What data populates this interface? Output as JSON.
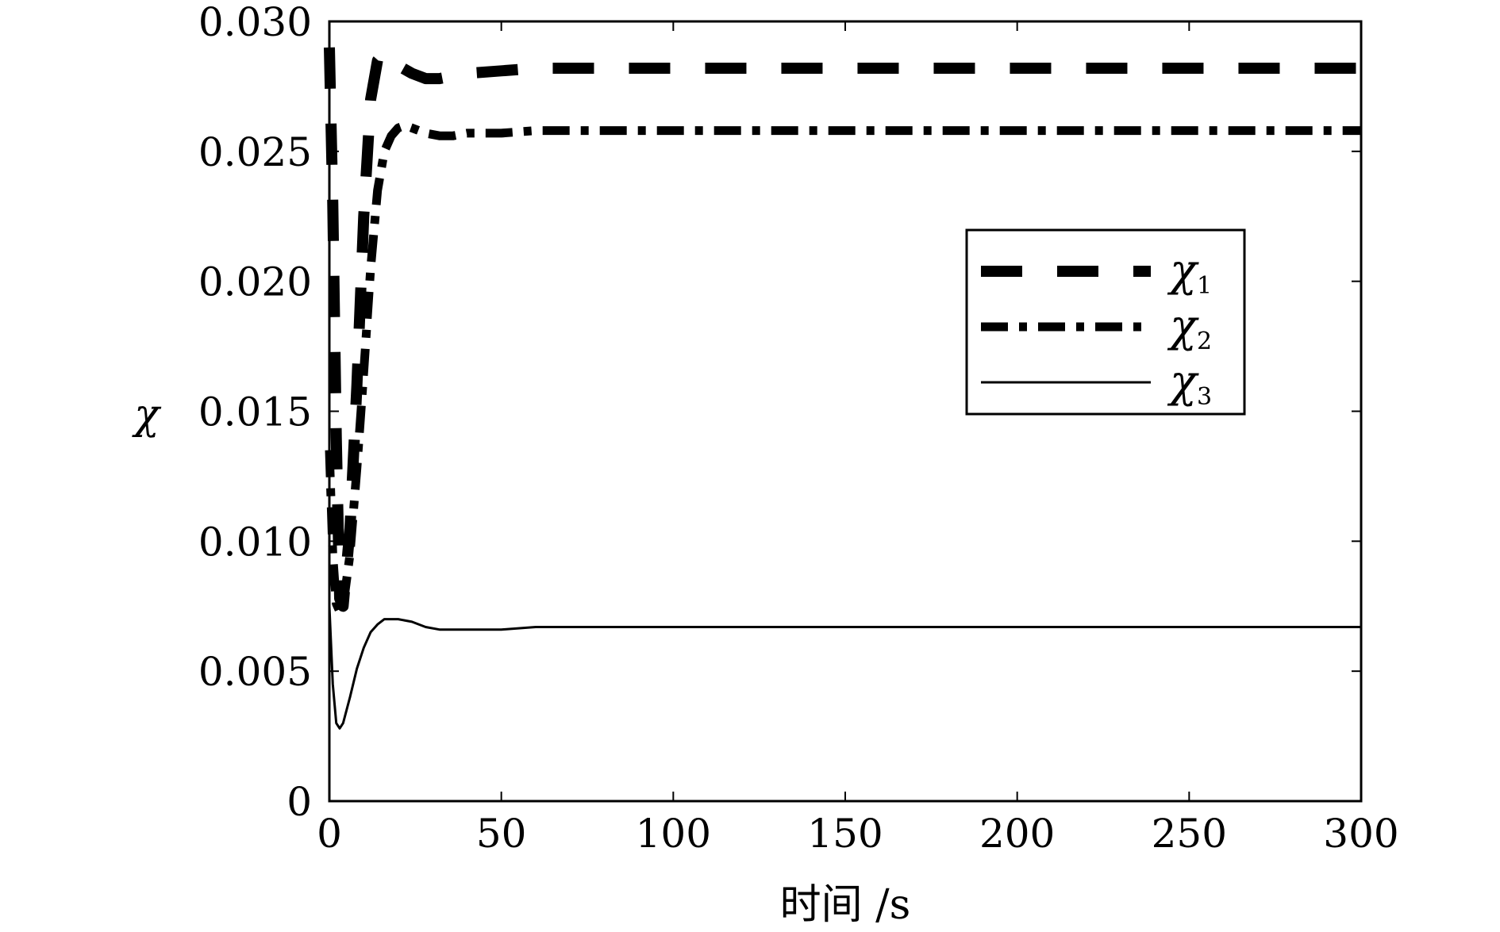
{
  "chart_data": {
    "type": "line",
    "xlabel": "时间 /s",
    "ylabel": "χ",
    "xlim": [
      0,
      300
    ],
    "ylim": [
      0,
      0.03
    ],
    "x_ticks": [
      0,
      50,
      100,
      150,
      200,
      250,
      300
    ],
    "x_tick_labels": [
      "0",
      "50",
      "100",
      "150",
      "200",
      "250",
      "300"
    ],
    "y_ticks": [
      0,
      0.005,
      0.01,
      0.015,
      0.02,
      0.025,
      0.03
    ],
    "y_tick_labels": [
      "0",
      "0.005",
      "0.010",
      "0.015",
      "0.020",
      "0.025",
      "0.030"
    ],
    "grid": false,
    "legend_position": "upper-right",
    "series": [
      {
        "name": "χ1",
        "legend_symbol": "χ",
        "legend_subscript": "1",
        "style": "dashed",
        "color": "#000000",
        "x": [
          0,
          1,
          2,
          3,
          4,
          6,
          8,
          10,
          12,
          14,
          16,
          18,
          20,
          24,
          28,
          32,
          36,
          40,
          50,
          60,
          80,
          100,
          150,
          200,
          250,
          300
        ],
        "y": [
          0.029,
          0.023,
          0.014,
          0.0078,
          0.0075,
          0.0105,
          0.016,
          0.0225,
          0.027,
          0.0285,
          0.0288,
          0.0286,
          0.0283,
          0.028,
          0.0278,
          0.0278,
          0.0279,
          0.028,
          0.0281,
          0.0282,
          0.0282,
          0.0282,
          0.0282,
          0.0282,
          0.0282,
          0.0282
        ]
      },
      {
        "name": "χ2",
        "legend_symbol": "χ",
        "legend_subscript": "2",
        "style": "dashdot",
        "color": "#000000",
        "x": [
          0,
          1,
          2,
          3,
          4,
          6,
          8,
          10,
          12,
          14,
          16,
          18,
          20,
          22,
          24,
          28,
          32,
          36,
          40,
          50,
          60,
          80,
          100,
          150,
          200,
          250,
          300
        ],
        "y": [
          0.0135,
          0.0095,
          0.0076,
          0.0073,
          0.0075,
          0.0095,
          0.0128,
          0.0165,
          0.0205,
          0.0235,
          0.025,
          0.0256,
          0.0259,
          0.026,
          0.0259,
          0.0257,
          0.0256,
          0.0256,
          0.0257,
          0.0257,
          0.0258,
          0.0258,
          0.0258,
          0.0258,
          0.0258,
          0.0258,
          0.0258
        ]
      },
      {
        "name": "χ3",
        "legend_symbol": "χ",
        "legend_subscript": "3",
        "style": "solid",
        "color": "#000000",
        "x": [
          0,
          1,
          2,
          3,
          4,
          6,
          8,
          10,
          12,
          14,
          16,
          18,
          20,
          24,
          28,
          32,
          36,
          40,
          50,
          60,
          80,
          100,
          150,
          200,
          250,
          300
        ],
        "y": [
          0.0075,
          0.0045,
          0.003,
          0.0028,
          0.003,
          0.004,
          0.0051,
          0.0059,
          0.0065,
          0.0068,
          0.007,
          0.007,
          0.007,
          0.0069,
          0.0067,
          0.0066,
          0.0066,
          0.0066,
          0.0066,
          0.0067,
          0.0067,
          0.0067,
          0.0067,
          0.0067,
          0.0067,
          0.0067
        ]
      }
    ]
  }
}
